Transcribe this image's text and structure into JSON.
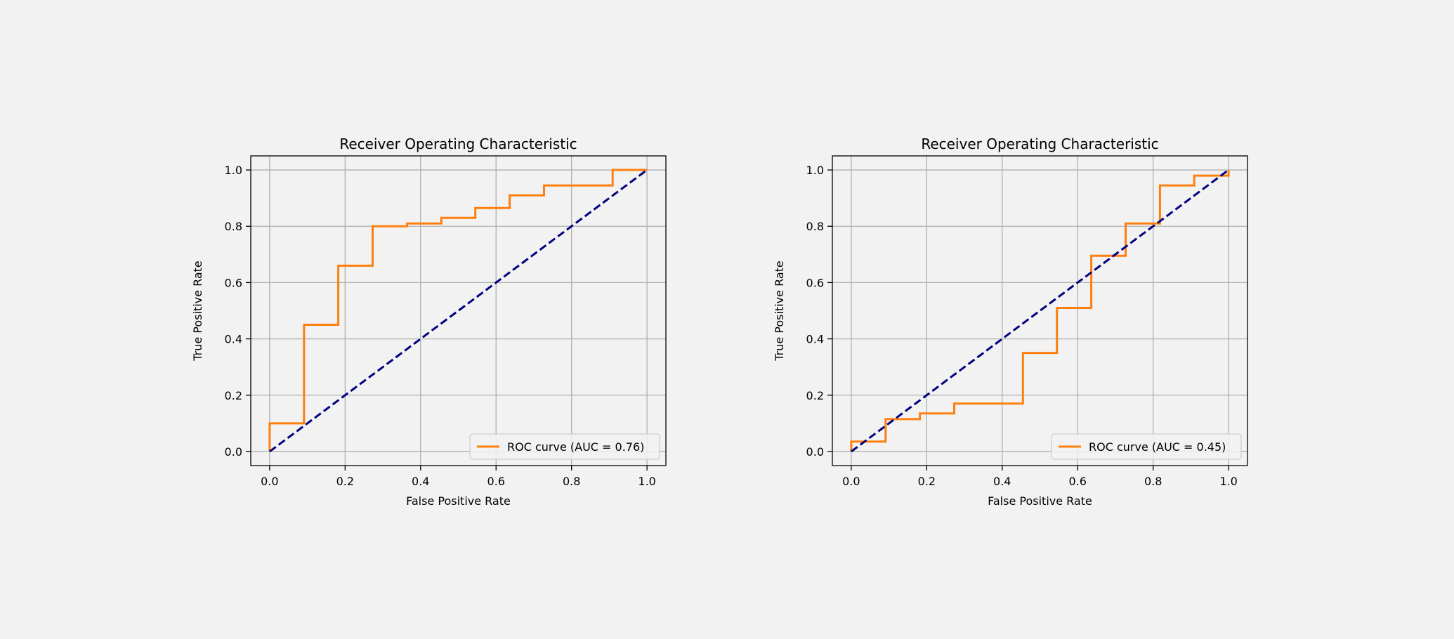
{
  "colors": {
    "background": "#f2f2f2",
    "axes_face": "#f2f2f2",
    "roc_curve": "#ff7f0e",
    "diagonal": "#000080",
    "grid": "#b0b0b0",
    "spine": "#000000",
    "text": "#000000"
  },
  "chart_data": [
    {
      "type": "line",
      "title": "Receiver Operating Characteristic",
      "xlabel": "False Positive Rate",
      "ylabel": "True Positive Rate",
      "xlim": [
        -0.05,
        1.05
      ],
      "ylim": [
        -0.05,
        1.05
      ],
      "xticks": [
        "0.0",
        "0.2",
        "0.4",
        "0.6",
        "0.8",
        "1.0"
      ],
      "yticks": [
        "0.0",
        "0.2",
        "0.4",
        "0.6",
        "0.8",
        "1.0"
      ],
      "grid": true,
      "legend_position": "lower-right",
      "series": [
        {
          "name": "ROC curve (AUC = 0.76)",
          "style": "solid",
          "x": [
            0.0,
            0.0,
            0.091,
            0.091,
            0.182,
            0.182,
            0.273,
            0.273,
            0.364,
            0.364,
            0.455,
            0.455,
            0.545,
            0.545,
            0.636,
            0.636,
            0.727,
            0.727,
            0.909,
            0.909,
            1.0
          ],
          "y": [
            0.0,
            0.1,
            0.1,
            0.45,
            0.45,
            0.66,
            0.66,
            0.8,
            0.8,
            0.81,
            0.81,
            0.83,
            0.83,
            0.865,
            0.865,
            0.91,
            0.91,
            0.945,
            0.945,
            1.0,
            1.0
          ]
        },
        {
          "style": "dashed",
          "x": [
            0,
            1
          ],
          "y": [
            0,
            1
          ]
        }
      ]
    },
    {
      "type": "line",
      "title": "Receiver Operating Characteristic",
      "xlabel": "False Positive Rate",
      "ylabel": "True Positive Rate",
      "xlim": [
        -0.05,
        1.05
      ],
      "ylim": [
        -0.05,
        1.05
      ],
      "xticks": [
        "0.0",
        "0.2",
        "0.4",
        "0.6",
        "0.8",
        "1.0"
      ],
      "yticks": [
        "0.0",
        "0.2",
        "0.4",
        "0.6",
        "0.8",
        "1.0"
      ],
      "grid": true,
      "legend_position": "lower-right",
      "series": [
        {
          "name": "ROC curve (AUC = 0.45)",
          "style": "solid",
          "x": [
            0.0,
            0.0,
            0.091,
            0.091,
            0.182,
            0.182,
            0.273,
            0.273,
            0.455,
            0.455,
            0.545,
            0.545,
            0.636,
            0.636,
            0.727,
            0.727,
            0.818,
            0.818,
            0.909,
            0.909,
            1.0,
            1.0
          ],
          "y": [
            0.0,
            0.035,
            0.035,
            0.115,
            0.115,
            0.135,
            0.135,
            0.17,
            0.17,
            0.35,
            0.35,
            0.51,
            0.51,
            0.695,
            0.695,
            0.81,
            0.81,
            0.945,
            0.945,
            0.98,
            0.98,
            1.0
          ]
        },
        {
          "style": "dashed",
          "x": [
            0,
            1
          ],
          "y": [
            0,
            1
          ]
        }
      ]
    }
  ]
}
